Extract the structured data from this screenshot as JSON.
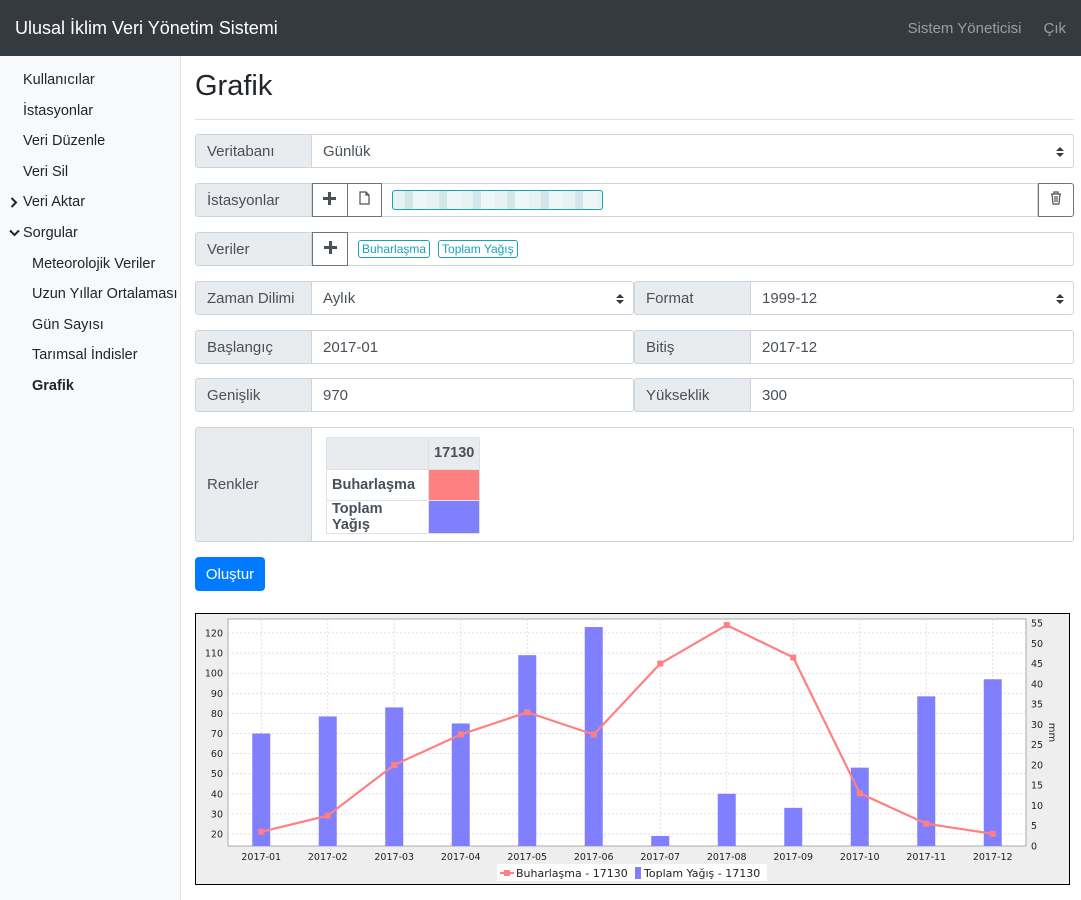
{
  "navbar": {
    "title": "Ulusal İklim Veri Yönetim Sistemi",
    "user": "Sistem Yöneticisi",
    "logout": "Çık"
  },
  "sidebar": {
    "items": [
      {
        "label": "Kullanıcılar"
      },
      {
        "label": "İstasyonlar"
      },
      {
        "label": "Veri Düzenle"
      },
      {
        "label": "Veri Sil"
      },
      {
        "label": "Veri Aktar",
        "chevron": "chevron-right-icon"
      },
      {
        "label": "Sorgular",
        "chevron": "chevron-down-icon"
      },
      {
        "label": "Meteorolojik Veriler"
      },
      {
        "label": "Uzun Yıllar Ortalaması"
      },
      {
        "label": "Gün Sayısı"
      },
      {
        "label": "Tarımsal İndisler"
      },
      {
        "label": "Grafik",
        "active": true
      }
    ]
  },
  "page": {
    "title": "Grafik"
  },
  "form": {
    "veritabani": {
      "label": "Veritabanı",
      "value": "Günlük"
    },
    "istasyonlar": {
      "label": "İstasyonlar"
    },
    "veriler": {
      "label": "Veriler",
      "tags": [
        "Buharlaşma",
        "Toplam Yağış"
      ]
    },
    "zaman": {
      "label": "Zaman Dilimi",
      "value": "Aylık"
    },
    "format": {
      "label": "Format",
      "value": "1999-12"
    },
    "baslangic": {
      "label": "Başlangıç",
      "value": "2017-01"
    },
    "bitis": {
      "label": "Bitiş",
      "value": "2017-12"
    },
    "genislik": {
      "label": "Genişlik",
      "value": "970"
    },
    "yukseklik": {
      "label": "Yükseklik",
      "value": "300"
    },
    "renkler": {
      "label": "Renkler",
      "header": "17130",
      "rows": [
        {
          "name": "Buharlaşma",
          "color": "#ff8080"
        },
        {
          "name": "Toplam Yağış",
          "color": "#8080ff"
        }
      ]
    },
    "submit": "Oluştur"
  },
  "chart_data": {
    "type": "bar",
    "categories": [
      "2017-01",
      "2017-02",
      "2017-03",
      "2017-04",
      "2017-05",
      "2017-06",
      "2017-07",
      "2017-08",
      "2017-09",
      "2017-10",
      "2017-11",
      "2017-12"
    ],
    "series": [
      {
        "name": "Toplam Yağış - 17130",
        "type": "bar",
        "axis": "left",
        "color": "#8080ff",
        "values": [
          70,
          78.5,
          83,
          75,
          109,
          123,
          19,
          40,
          33,
          53,
          88.5,
          97
        ]
      },
      {
        "name": "Buharlaşma - 17130",
        "type": "line",
        "axis": "right",
        "color": "#ff8080",
        "values": [
          3.5,
          7.5,
          20,
          27.5,
          33,
          27.5,
          45,
          54.5,
          46.5,
          13,
          5.5,
          3
        ]
      }
    ],
    "yleft": {
      "ticks": [
        20,
        30,
        40,
        50,
        60,
        70,
        80,
        90,
        100,
        110,
        120
      ],
      "range": [
        14,
        127
      ]
    },
    "yright": {
      "ticks": [
        0,
        5,
        10,
        15,
        20,
        25,
        30,
        35,
        40,
        45,
        50,
        55
      ],
      "range": [
        0,
        56
      ],
      "label": "mm"
    },
    "legend": "bottom",
    "grid": true
  }
}
